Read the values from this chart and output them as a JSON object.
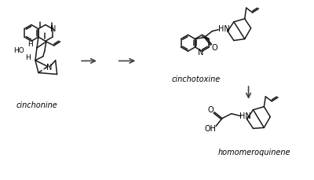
{
  "background_color": "#ffffff",
  "line_color": "#1a1a1a",
  "text_color": "#000000",
  "arrow_color": "#444444",
  "label_cinchonine": "cinchonine",
  "label_cinchotoxine": "cinchotoxine",
  "label_homomeroquinene": "homomeroquinene",
  "figsize": [
    4.0,
    2.3
  ],
  "dpi": 100
}
